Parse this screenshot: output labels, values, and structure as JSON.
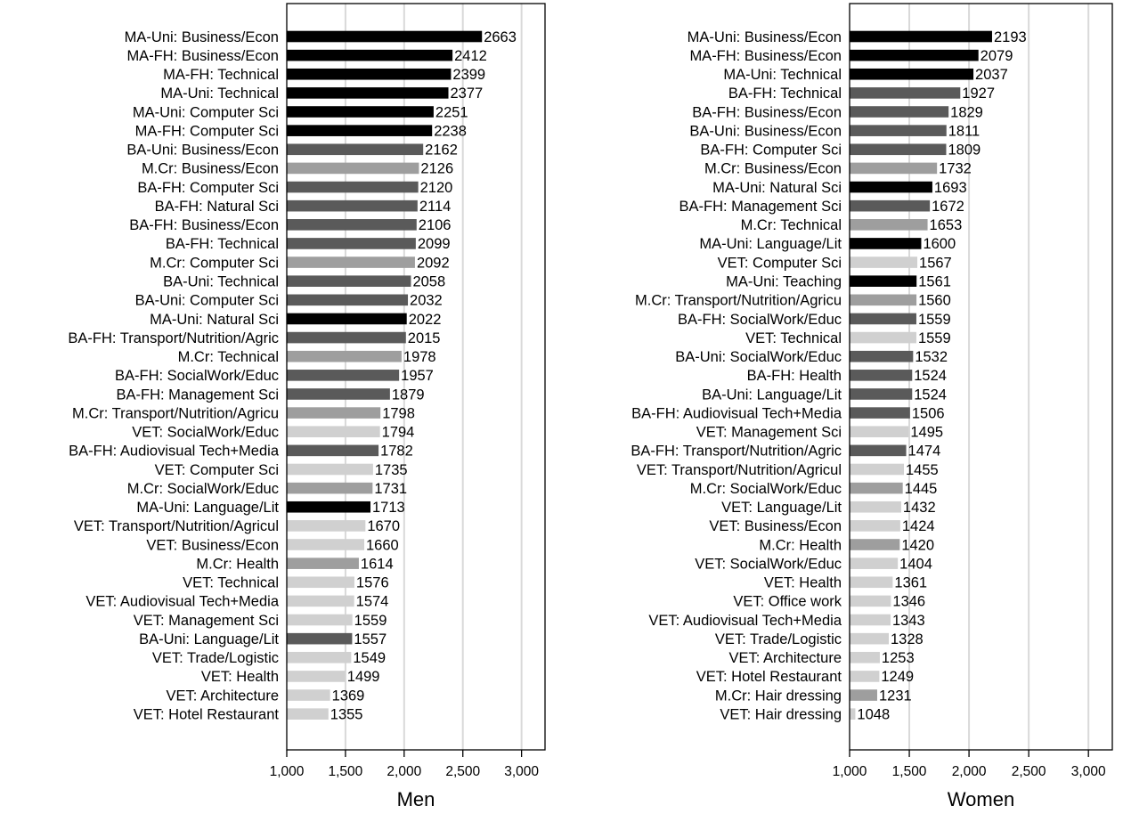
{
  "chart_data": [
    {
      "type": "bar",
      "orientation": "horizontal",
      "xlabel": "Men",
      "xlim": [
        1000,
        3200
      ],
      "xticks": [
        1000,
        1500,
        2000,
        2500,
        3000
      ],
      "xtick_labels": [
        "1,000",
        "1,500",
        "2,000",
        "2,500",
        "3,000"
      ],
      "grid": "vertical",
      "categories": [
        "MA-Uni: Business/Econ",
        "MA-FH: Business/Econ",
        "MA-FH: Technical",
        "MA-Uni: Technical",
        "MA-Uni: Computer Sci",
        "MA-FH: Computer Sci",
        "BA-Uni: Business/Econ",
        "M.Cr: Business/Econ",
        "BA-FH: Computer Sci",
        "BA-FH: Natural Sci",
        "BA-FH: Business/Econ",
        "BA-FH: Technical",
        "M.Cr: Computer Sci",
        "BA-Uni: Technical",
        "BA-Uni: Computer Sci",
        "MA-Uni: Natural Sci",
        "BA-FH: Transport/Nutrition/Agric",
        "M.Cr: Technical",
        "BA-FH: SocialWork/Educ",
        "BA-FH: Management Sci",
        "M.Cr: Transport/Nutrition/Agricu",
        "VET: SocialWork/Educ",
        "BA-FH: Audiovisual Tech+Media",
        "VET: Computer Sci",
        "M.Cr: SocialWork/Educ",
        "MA-Uni: Language/Lit",
        "VET: Transport/Nutrition/Agricul",
        "VET: Business/Econ",
        "M.Cr: Health",
        "VET: Technical",
        "VET: Audiovisual Tech+Media",
        "VET: Management Sci",
        "BA-Uni: Language/Lit",
        "VET: Trade/Logistic",
        "VET: Health",
        "VET: Architecture",
        "VET: Hotel Restaurant"
      ],
      "values": [
        2663,
        2412,
        2399,
        2377,
        2251,
        2238,
        2162,
        2126,
        2120,
        2114,
        2106,
        2099,
        2092,
        2058,
        2032,
        2022,
        2015,
        1978,
        1957,
        1879,
        1798,
        1794,
        1782,
        1735,
        1731,
        1713,
        1670,
        1660,
        1614,
        1576,
        1574,
        1559,
        1557,
        1549,
        1499,
        1369,
        1355
      ],
      "value_labels": [
        "2663",
        "2412",
        "2399",
        "2377",
        "2251",
        "2238",
        "2162",
        "2126",
        "2120",
        "2114",
        "2106",
        "2099",
        "2092",
        "2058",
        "2032",
        "2022",
        "2015",
        "1978",
        "1957",
        "1879",
        "1798",
        "1794",
        "1782",
        "1735",
        "1731",
        "1713",
        "1670",
        "1660",
        "1614",
        "1576",
        "1574",
        "1559",
        "1557",
        "1549",
        "1499",
        "1369",
        "1355"
      ],
      "groups": [
        "MA",
        "MA",
        "MA",
        "MA",
        "MA",
        "MA",
        "BA",
        "MCR",
        "BA",
        "BA",
        "BA",
        "BA",
        "MCR",
        "BA",
        "BA",
        "MA",
        "BA",
        "MCR",
        "BA",
        "BA",
        "MCR",
        "VET",
        "BA",
        "VET",
        "MCR",
        "MA",
        "VET",
        "VET",
        "MCR",
        "VET",
        "VET",
        "VET",
        "BA",
        "VET",
        "VET",
        "VET",
        "VET"
      ]
    },
    {
      "type": "bar",
      "orientation": "horizontal",
      "xlabel": "Women",
      "xlim": [
        1000,
        3200
      ],
      "xticks": [
        1000,
        1500,
        2000,
        2500,
        3000
      ],
      "xtick_labels": [
        "1,000",
        "1,500",
        "2,000",
        "2,500",
        "3,000"
      ],
      "grid": "vertical",
      "categories": [
        "MA-Uni: Business/Econ",
        "MA-FH: Business/Econ",
        "MA-Uni: Technical",
        "BA-FH: Technical",
        "BA-FH: Business/Econ",
        "BA-Uni: Business/Econ",
        "BA-FH: Computer Sci",
        "M.Cr: Business/Econ",
        "MA-Uni: Natural Sci",
        "BA-FH: Management Sci",
        "M.Cr: Technical",
        "MA-Uni: Language/Lit",
        "VET: Computer Sci",
        "MA-Uni: Teaching",
        "M.Cr: Transport/Nutrition/Agricu",
        "BA-FH: SocialWork/Educ",
        "VET: Technical",
        "BA-Uni: SocialWork/Educ",
        "BA-FH: Health",
        "BA-Uni: Language/Lit",
        "BA-FH: Audiovisual Tech+Media",
        "VET: Management Sci",
        "BA-FH: Transport/Nutrition/Agric",
        "VET: Transport/Nutrition/Agricul",
        "M.Cr: SocialWork/Educ",
        "VET: Language/Lit",
        "VET: Business/Econ",
        "M.Cr: Health",
        "VET: SocialWork/Educ",
        "VET: Health",
        "VET: Office work",
        "VET: Audiovisual Tech+Media",
        "VET: Trade/Logistic",
        "VET: Architecture",
        "VET: Hotel Restaurant",
        "M.Cr: Hair dressing",
        "VET: Hair dressing"
      ],
      "values": [
        2193,
        2079,
        2037,
        1927,
        1829,
        1811,
        1809,
        1732,
        1693,
        1672,
        1653,
        1600,
        1567,
        1561,
        1560,
        1559,
        1559,
        1532,
        1524,
        1524,
        1506,
        1495,
        1474,
        1455,
        1445,
        1432,
        1424,
        1420,
        1404,
        1361,
        1346,
        1343,
        1328,
        1253,
        1249,
        1231,
        1048
      ],
      "value_labels": [
        "2193",
        "2079",
        "2037",
        "1927",
        "1829",
        "1811",
        "1809",
        "1732",
        "1693",
        "1672",
        "1653",
        "1600",
        "1567",
        "1561",
        "1560",
        "1559",
        "1559",
        "1532",
        "1524",
        "1524",
        "1506",
        "1495",
        "1474",
        "1455",
        "1445",
        "1432",
        "1424",
        "1420",
        "1404",
        "1361",
        "1346",
        "1343",
        "1328",
        "1253",
        "1249",
        "1231",
        "1048"
      ],
      "groups": [
        "MA",
        "MA",
        "MA",
        "BA",
        "BA",
        "BA",
        "BA",
        "MCR",
        "MA",
        "BA",
        "MCR",
        "MA",
        "VET",
        "MA",
        "MCR",
        "BA",
        "VET",
        "BA",
        "BA",
        "BA",
        "BA",
        "VET",
        "BA",
        "VET",
        "MCR",
        "VET",
        "VET",
        "MCR",
        "VET",
        "VET",
        "VET",
        "VET",
        "VET",
        "VET",
        "VET",
        "MCR",
        "VET"
      ]
    }
  ],
  "colors": {
    "MA": "#000000",
    "BA": "#5a5a5a",
    "MCR": "#9e9e9e",
    "VET": "#d0d0d0",
    "grid": "#d9d9d9",
    "frame": "#000000"
  }
}
